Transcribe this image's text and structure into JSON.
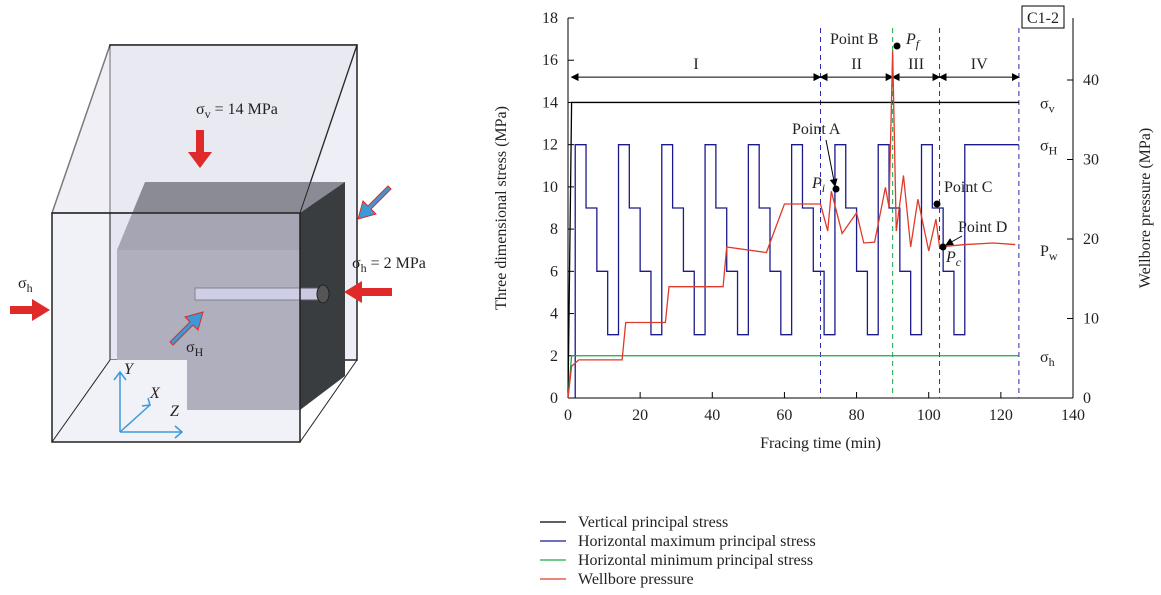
{
  "diagram": {
    "sigma_v": {
      "base": "σ",
      "sub": "v",
      "rest": " = 14 MPa"
    },
    "sigma_h_right": {
      "base": "σ",
      "sub": "h",
      "rest": " = 2 MPa"
    },
    "sigma_h_left": {
      "base": "σ",
      "sub": "h"
    },
    "sigma_H": {
      "base": "σ",
      "sub": "H"
    },
    "axis_y": "Y",
    "axis_x": "X",
    "axis_z": "Z"
  },
  "chart_data": {
    "type": "line",
    "badge": "C1-2",
    "xlabel": "Fracing time (min)",
    "ylabel": "Three dimensional stress (MPa)",
    "y2label": "Wellbore pressure (MPa)",
    "xlim": [
      0,
      140
    ],
    "xticks": [
      0,
      20,
      40,
      60,
      80,
      100,
      120,
      140
    ],
    "ylim": [
      0,
      18
    ],
    "yticks": [
      0,
      2,
      4,
      6,
      8,
      10,
      12,
      14,
      16,
      18
    ],
    "y2lim": [
      0,
      47.8
    ],
    "y2ticks": [
      0,
      10,
      20,
      30,
      40
    ],
    "stages": [
      "I",
      "II",
      "III",
      "IV"
    ],
    "stage_boundaries": [
      1,
      70,
      90,
      103,
      125
    ],
    "series": [
      {
        "name": "Vertical principal stress",
        "color": "#000000",
        "x": [
          0,
          1,
          125
        ],
        "values": [
          0,
          14,
          14
        ]
      },
      {
        "name": "Horizontal maximum principal stress",
        "color": "#1a1a8c",
        "x": [
          2,
          2,
          5,
          5,
          8,
          8,
          11,
          11,
          14,
          14,
          17,
          17,
          20,
          20,
          23,
          23,
          26,
          26,
          29,
          29,
          32,
          32,
          35,
          35,
          38,
          38,
          41,
          41,
          44,
          44,
          47,
          47,
          50,
          50,
          53,
          53,
          56,
          56,
          59,
          59,
          62,
          62,
          65,
          65,
          68,
          68,
          71,
          71,
          74,
          74,
          77,
          77,
          80,
          80,
          83,
          83,
          86,
          86,
          89,
          89,
          92,
          92,
          95,
          95,
          98,
          98,
          101,
          101,
          104,
          104,
          107,
          107,
          110,
          110,
          125
        ],
        "values": [
          0,
          12,
          12,
          9,
          9,
          6,
          6,
          3,
          3,
          12,
          12,
          9,
          9,
          6,
          6,
          3,
          3,
          12,
          12,
          9,
          9,
          6,
          6,
          3,
          3,
          12,
          12,
          9,
          9,
          6,
          6,
          3,
          3,
          12,
          12,
          9,
          9,
          6,
          6,
          3,
          3,
          12,
          12,
          9,
          9,
          6,
          6,
          3,
          3,
          12,
          12,
          9,
          9,
          6,
          6,
          3,
          3,
          12,
          12,
          9,
          9,
          6,
          6,
          3,
          3,
          12,
          12,
          9,
          9,
          6,
          6,
          3,
          3,
          12,
          12
        ]
      },
      {
        "name": "Horizontal minimum principal stress",
        "color": "#1aa64a",
        "x": [
          0,
          1,
          125
        ],
        "values": [
          0,
          2,
          2
        ]
      },
      {
        "name": "Wellbore pressure",
        "color": "#e03a2a",
        "axis": "y2",
        "x": [
          0,
          1,
          3,
          15,
          16,
          27,
          28,
          43,
          44,
          55,
          60,
          70,
          72,
          73,
          76,
          78,
          80,
          82,
          85,
          88,
          89,
          90,
          91,
          93,
          95,
          97,
          100,
          102,
          103,
          110,
          118,
          124
        ],
        "values": [
          0,
          4,
          4.8,
          4.8,
          9.5,
          9.5,
          14,
          14,
          19,
          18.3,
          24.4,
          24.4,
          21,
          26,
          20.7,
          22,
          23.3,
          19.5,
          19.6,
          26.5,
          24,
          43.7,
          21,
          28,
          19,
          25,
          18.5,
          22.5,
          19,
          19.3,
          19.5,
          19.3
        ]
      }
    ],
    "right_labels": {
      "sv": {
        "base": "σ",
        "sub": "v"
      },
      "sH": {
        "base": "σ",
        "sub": "H"
      },
      "sh": {
        "base": "σ",
        "sub": "h"
      },
      "pw": {
        "base": "P",
        "sub": "w"
      }
    },
    "annotations": {
      "a": "Point A",
      "b": "Point B",
      "c": "Point C",
      "d": "Point D",
      "pf": {
        "base": "P",
        "sub": "f"
      },
      "pi": {
        "base": "P",
        "sub": "i"
      },
      "pc": {
        "base": "P",
        "sub": "c"
      }
    }
  }
}
